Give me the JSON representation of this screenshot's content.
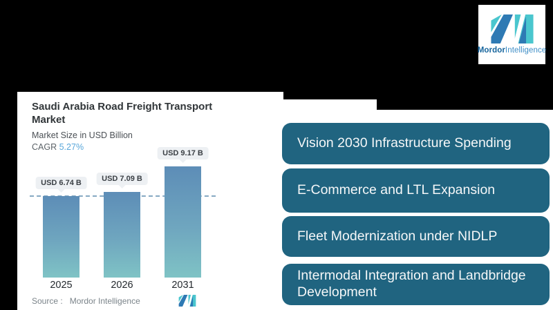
{
  "brand": {
    "name_bold": "Mordor",
    "name_rest": "Intelligence",
    "logo_blue": "#2e7ab4",
    "logo_teal": "#4ac6ce"
  },
  "chart": {
    "title": "Saudi Arabia Road Freight Transport Market",
    "subtitle": "Market Size in USD Billion",
    "cagr_label": "CAGR",
    "cagr_value": "5.27%",
    "source_label": "Source :",
    "source_value": "Mordor Intelligence"
  },
  "chart_data": {
    "type": "bar",
    "title": "Saudi Arabia Road Freight Transport Market",
    "ylabel": "Market Size in USD Billion",
    "cagr": "5.27%",
    "categories": [
      "2025",
      "2026",
      "2031"
    ],
    "values": [
      6.74,
      7.09,
      9.17
    ],
    "value_labels": [
      "USD 6.74 B",
      "USD 7.09 B",
      "USD 9.17 B"
    ],
    "reference_line": 6.74,
    "ylim": [
      0,
      9.17
    ],
    "grid": "off",
    "legend": "none",
    "bar_color_top": "#5d8db7",
    "bar_color_bottom": "#7fc3c5",
    "dashed_line_color": "#85a8c2",
    "label_chip_bg": "#edf0f3"
  },
  "drivers": {
    "accent_color": "#206480",
    "items": [
      {
        "label": "Vision 2030 Infrastructure Spending"
      },
      {
        "label": "E-Commerce and LTL Expansion"
      },
      {
        "label": "Fleet Modernization under NIDLP"
      },
      {
        "label": "Intermodal Integration and Landbridge Development"
      }
    ]
  }
}
